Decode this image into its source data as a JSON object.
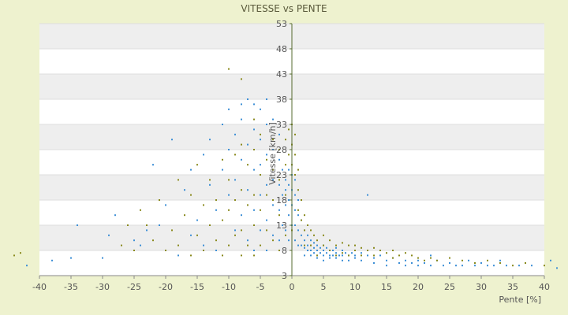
{
  "chart_data": {
    "type": "scatter",
    "title": "VITESSE vs PENTE",
    "xlabel": "Pente [%]",
    "ylabel": "Vitesse [km/h]",
    "xlim": [
      -40,
      40
    ],
    "ylim": [
      3,
      53
    ],
    "x_ticks": [
      -40,
      -35,
      -30,
      -25,
      -20,
      -15,
      -10,
      -5,
      0,
      5,
      10,
      15,
      20,
      25,
      30,
      35,
      40
    ],
    "y_ticks": [
      3,
      8,
      13,
      18,
      23,
      28,
      33,
      38,
      43,
      48,
      53
    ],
    "grid": true,
    "legend": "none",
    "colors": {
      "series_blue": "#3d8fd6",
      "series_olive": "#8a8a1e",
      "axis": "#556b2f",
      "band": "#eeeeee"
    },
    "series": [
      {
        "color": "#3d8fd6",
        "points": [
          [
            -42,
            5
          ],
          [
            -38,
            6
          ],
          [
            -35,
            6.5
          ],
          [
            -34,
            13
          ],
          [
            -30,
            6.5
          ],
          [
            -29,
            11
          ],
          [
            -28,
            15
          ],
          [
            -25,
            10
          ],
          [
            -24,
            9
          ],
          [
            -23,
            12
          ],
          [
            -22,
            25
          ],
          [
            -21,
            13
          ],
          [
            -20,
            17
          ],
          [
            -19,
            30
          ],
          [
            -18,
            7
          ],
          [
            -17,
            20
          ],
          [
            -16,
            11
          ],
          [
            -16,
            24
          ],
          [
            -15,
            14
          ],
          [
            -14,
            27
          ],
          [
            -14,
            9
          ],
          [
            -13,
            21
          ],
          [
            -13,
            30
          ],
          [
            -12,
            16
          ],
          [
            -12,
            8
          ],
          [
            -11,
            24
          ],
          [
            -11,
            33
          ],
          [
            -10,
            19
          ],
          [
            -10,
            28
          ],
          [
            -10,
            36
          ],
          [
            -9,
            12
          ],
          [
            -9,
            22
          ],
          [
            -9,
            31
          ],
          [
            -8,
            34
          ],
          [
            -8,
            37
          ],
          [
            -8,
            26
          ],
          [
            -8,
            15
          ],
          [
            -7,
            38
          ],
          [
            -7,
            29
          ],
          [
            -7,
            20
          ],
          [
            -7,
            10
          ],
          [
            -6,
            37
          ],
          [
            -6,
            32
          ],
          [
            -6,
            24
          ],
          [
            -6,
            16
          ],
          [
            -6,
            8
          ],
          [
            -5,
            36
          ],
          [
            -5,
            30
          ],
          [
            -5,
            25
          ],
          [
            -5,
            19
          ],
          [
            -5,
            12
          ],
          [
            -4,
            38
          ],
          [
            -4,
            33
          ],
          [
            -4,
            27
          ],
          [
            -4,
            21
          ],
          [
            -4,
            14
          ],
          [
            -4,
            8
          ],
          [
            -3,
            34
          ],
          [
            -3,
            28
          ],
          [
            -3,
            22
          ],
          [
            -3,
            17
          ],
          [
            -3,
            11
          ],
          [
            -2,
            31
          ],
          [
            -2,
            26
          ],
          [
            -2,
            21
          ],
          [
            -2,
            16
          ],
          [
            -2,
            10
          ],
          [
            -1.5,
            24
          ],
          [
            -1.5,
            19
          ],
          [
            -1.5,
            13
          ],
          [
            -1,
            22
          ],
          [
            -1,
            20
          ],
          [
            -1,
            17
          ],
          [
            -1,
            12
          ],
          [
            -0.5,
            24
          ],
          [
            -0.5,
            21
          ],
          [
            -0.5,
            18
          ],
          [
            -0.5,
            15
          ],
          [
            -0.5,
            10
          ],
          [
            0,
            23
          ],
          [
            0,
            20
          ],
          [
            0,
            17
          ],
          [
            0,
            13
          ],
          [
            0.5,
            22
          ],
          [
            0.5,
            19
          ],
          [
            0.5,
            16
          ],
          [
            0.5,
            13
          ],
          [
            0.5,
            10
          ],
          [
            1,
            18
          ],
          [
            1,
            15
          ],
          [
            1,
            12
          ],
          [
            1,
            9
          ],
          [
            1.5,
            14
          ],
          [
            1.5,
            11
          ],
          [
            1.5,
            9
          ],
          [
            2,
            12
          ],
          [
            2,
            10
          ],
          [
            2,
            8.5
          ],
          [
            2,
            7
          ],
          [
            2.5,
            11
          ],
          [
            2.5,
            9
          ],
          [
            2.5,
            8
          ],
          [
            3,
            10
          ],
          [
            3,
            9
          ],
          [
            3,
            8
          ],
          [
            3,
            7
          ],
          [
            3.5,
            9.5
          ],
          [
            3.5,
            8.5
          ],
          [
            3.5,
            7.5
          ],
          [
            4,
            9
          ],
          [
            4,
            8
          ],
          [
            4,
            7
          ],
          [
            4,
            6.5
          ],
          [
            4.5,
            8.5
          ],
          [
            4.5,
            7.5
          ],
          [
            5,
            9
          ],
          [
            5,
            8
          ],
          [
            5,
            7
          ],
          [
            5,
            6
          ],
          [
            5.5,
            8.5
          ],
          [
            5.5,
            7.5
          ],
          [
            6,
            8
          ],
          [
            6,
            7
          ],
          [
            6,
            6.5
          ],
          [
            6.5,
            8
          ],
          [
            6.5,
            7
          ],
          [
            7,
            8.5
          ],
          [
            7,
            7.5
          ],
          [
            7,
            6.5
          ],
          [
            7.5,
            7
          ],
          [
            8,
            8
          ],
          [
            8,
            7
          ],
          [
            8,
            6
          ],
          [
            8.5,
            7.5
          ],
          [
            9,
            7
          ],
          [
            9,
            6
          ],
          [
            9.5,
            7.5
          ],
          [
            10,
            7
          ],
          [
            10,
            6.5
          ],
          [
            11,
            7.5
          ],
          [
            11,
            6
          ],
          [
            12,
            7
          ],
          [
            12,
            19
          ],
          [
            13,
            6.5
          ],
          [
            13,
            5.5
          ],
          [
            14,
            7
          ],
          [
            15,
            6
          ],
          [
            15,
            5
          ],
          [
            16,
            6.5
          ],
          [
            17,
            5.5
          ],
          [
            18,
            6
          ],
          [
            18,
            5
          ],
          [
            19,
            5.5
          ],
          [
            20,
            6
          ],
          [
            20,
            5
          ],
          [
            21,
            5.5
          ],
          [
            22,
            7
          ],
          [
            22,
            5
          ],
          [
            23,
            6
          ],
          [
            24,
            5
          ],
          [
            25,
            5.5
          ],
          [
            26,
            5
          ],
          [
            27,
            5
          ],
          [
            28,
            6
          ],
          [
            29,
            5
          ],
          [
            30,
            5.5
          ],
          [
            31,
            5
          ],
          [
            32,
            5
          ],
          [
            33,
            6
          ],
          [
            34,
            5
          ],
          [
            36,
            5
          ],
          [
            38,
            5
          ],
          [
            41,
            6
          ],
          [
            42,
            4.5
          ]
        ]
      },
      {
        "color": "#8a8a1e",
        "points": [
          [
            -44,
            7
          ],
          [
            -43,
            7.5
          ],
          [
            -27,
            9
          ],
          [
            -26,
            13
          ],
          [
            -25,
            8
          ],
          [
            -24,
            16
          ],
          [
            -23,
            13
          ],
          [
            -22,
            10
          ],
          [
            -21,
            18
          ],
          [
            -20,
            8
          ],
          [
            -19,
            12
          ],
          [
            -18,
            22
          ],
          [
            -18,
            9
          ],
          [
            -17,
            15
          ],
          [
            -16,
            19
          ],
          [
            -16,
            7
          ],
          [
            -15,
            25
          ],
          [
            -15,
            11
          ],
          [
            -14,
            17
          ],
          [
            -14,
            8
          ],
          [
            -13,
            22
          ],
          [
            -13,
            13
          ],
          [
            -12,
            18
          ],
          [
            -12,
            10
          ],
          [
            -11,
            26
          ],
          [
            -11,
            14
          ],
          [
            -11,
            7
          ],
          [
            -10,
            44
          ],
          [
            -10,
            22
          ],
          [
            -10,
            16
          ],
          [
            -10,
            9
          ],
          [
            -9,
            27
          ],
          [
            -9,
            18
          ],
          [
            -9,
            11
          ],
          [
            -8,
            42
          ],
          [
            -8,
            29
          ],
          [
            -8,
            20
          ],
          [
            -8,
            12
          ],
          [
            -8,
            7
          ],
          [
            -7,
            25
          ],
          [
            -7,
            17
          ],
          [
            -7,
            9
          ],
          [
            -6,
            34
          ],
          [
            -6,
            28
          ],
          [
            -6,
            19
          ],
          [
            -6,
            13
          ],
          [
            -6,
            7
          ],
          [
            -5,
            31
          ],
          [
            -5,
            23
          ],
          [
            -5,
            16
          ],
          [
            -5,
            9
          ],
          [
            -4,
            26
          ],
          [
            -4,
            19
          ],
          [
            -4,
            12
          ],
          [
            -3,
            30
          ],
          [
            -3,
            24
          ],
          [
            -3,
            18
          ],
          [
            -3,
            10
          ],
          [
            -2,
            28
          ],
          [
            -2,
            22
          ],
          [
            -2,
            15
          ],
          [
            -2,
            8
          ],
          [
            -1,
            30
          ],
          [
            -1,
            25
          ],
          [
            -1,
            19
          ],
          [
            -1,
            11
          ],
          [
            -0.5,
            32
          ],
          [
            -0.5,
            27
          ],
          [
            0,
            33
          ],
          [
            0,
            29
          ],
          [
            0,
            25
          ],
          [
            0,
            12
          ],
          [
            0.5,
            31
          ],
          [
            0.5,
            27
          ],
          [
            0.5,
            23
          ],
          [
            1,
            24
          ],
          [
            1,
            20
          ],
          [
            1,
            16
          ],
          [
            1.5,
            18
          ],
          [
            1.5,
            14
          ],
          [
            2,
            15
          ],
          [
            2,
            12
          ],
          [
            2,
            9
          ],
          [
            2.5,
            13
          ],
          [
            3,
            12
          ],
          [
            3,
            9
          ],
          [
            3.5,
            11
          ],
          [
            4,
            10
          ],
          [
            4,
            7
          ],
          [
            5,
            11
          ],
          [
            5,
            9
          ],
          [
            6,
            10
          ],
          [
            6,
            8
          ],
          [
            7,
            9
          ],
          [
            7,
            7
          ],
          [
            8,
            9.5
          ],
          [
            8,
            7.5
          ],
          [
            9,
            9
          ],
          [
            9,
            7
          ],
          [
            10,
            9
          ],
          [
            10,
            8
          ],
          [
            11,
            8.5
          ],
          [
            11,
            7
          ],
          [
            12,
            8
          ],
          [
            13,
            8.5
          ],
          [
            13,
            7
          ],
          [
            14,
            8
          ],
          [
            15,
            7.5
          ],
          [
            16,
            8
          ],
          [
            16,
            6.5
          ],
          [
            17,
            7
          ],
          [
            18,
            7.5
          ],
          [
            19,
            7
          ],
          [
            20,
            6.5
          ],
          [
            21,
            6
          ],
          [
            22,
            6.5
          ],
          [
            23,
            6
          ],
          [
            25,
            6.5
          ],
          [
            27,
            6
          ],
          [
            29,
            5.5
          ],
          [
            31,
            6
          ],
          [
            33,
            5.5
          ],
          [
            35,
            5
          ],
          [
            37,
            5.5
          ],
          [
            40,
            5
          ]
        ]
      }
    ]
  }
}
